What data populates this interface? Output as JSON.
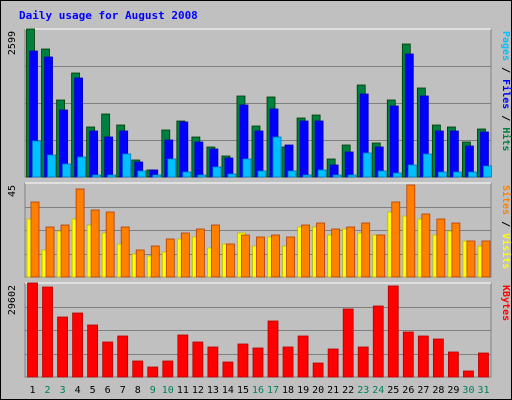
{
  "chart_data": {
    "type": "bar",
    "title": "Daily usage for August 2008",
    "categories": [
      "1",
      "2",
      "3",
      "4",
      "5",
      "6",
      "7",
      "8",
      "9",
      "10",
      "11",
      "12",
      "13",
      "14",
      "15",
      "16",
      "17",
      "18",
      "19",
      "20",
      "21",
      "22",
      "23",
      "24",
      "25",
      "26",
      "27",
      "28",
      "29",
      "30",
      "31"
    ],
    "weekend_days": [
      "2",
      "3",
      "9",
      "10",
      "16",
      "17",
      "23",
      "24",
      "30",
      "31"
    ],
    "panels": {
      "hits": {
        "ymax": 2599,
        "ylabel": [
          "Pages",
          "Files",
          "Hits"
        ],
        "series": [
          {
            "name": "Hits",
            "color": "#008040",
            "values": [
              2599,
              2240,
              1350,
              1820,
              880,
              1100,
              910,
              290,
              130,
              830,
              990,
              700,
              520,
              370,
              1430,
              900,
              1400,
              520,
              1040,
              1090,
              310,
              560,
              1610,
              600,
              1350,
              2330,
              1560,
              910,
              870,
              610,
              850
            ]
          },
          {
            "name": "Files",
            "color": "#0000ff",
            "values": [
              2210,
              2100,
              1170,
              1740,
              800,
              700,
              810,
              270,
              120,
              650,
              970,
              620,
              490,
              340,
              1260,
              800,
              1190,
              560,
              980,
              980,
              210,
              440,
              1450,
              520,
              1250,
              2160,
              1420,
              800,
              810,
              540,
              790
            ]
          },
          {
            "name": "Pages",
            "color": "#00c0ff",
            "values": [
              630,
              380,
              220,
              350,
              40,
              40,
              410,
              100,
              30,
              320,
              90,
              40,
              180,
              50,
              310,
              100,
              700,
              100,
              40,
              120,
              30,
              30,
              430,
              100,
              70,
              210,
              400,
              80,
              80,
              80,
              200
            ]
          }
        ]
      },
      "visits": {
        "ymax": 45,
        "ylabel": [
          "Sites",
          "Visits"
        ],
        "series": [
          {
            "name": "Visits",
            "color": "#ffff00",
            "values": [
              28,
              13,
              22,
              28,
              25,
              21,
              16,
              11,
              10,
              12,
              18,
              19,
              14,
              16,
              21,
              15,
              19,
              15,
              24,
              24,
              20,
              23,
              21,
              20,
              31,
              29,
              28,
              20,
              22,
              17,
              15
            ]
          },
          {
            "name": "Sites",
            "color": "#ff8000",
            "values": [
              36,
              24,
              25,
              42,
              32,
              31,
              24,
              13,
              15,
              18,
              21,
              23,
              25,
              16,
              20,
              19,
              20,
              19,
              25,
              26,
              23,
              24,
              26,
              20,
              36,
              44,
              30,
              28,
              26,
              17,
              17
            ]
          }
        ]
      },
      "kbytes": {
        "ymax": 29602,
        "ylabel": [
          "KBytes"
        ],
        "series": [
          {
            "name": "KBytes",
            "color": "#ff0000",
            "values": [
              29602,
              28360,
              18800,
              20000,
              16280,
              11000,
              12900,
              4950,
              3200,
              5130,
              13150,
              10950,
              9500,
              4670,
              10500,
              9000,
              17550,
              9600,
              13000,
              4310,
              8950,
              21500,
              9550,
              22300,
              28600,
              14100,
              13000,
              12000,
              8000,
              1950,
              7530
            ]
          }
        ]
      }
    }
  }
}
